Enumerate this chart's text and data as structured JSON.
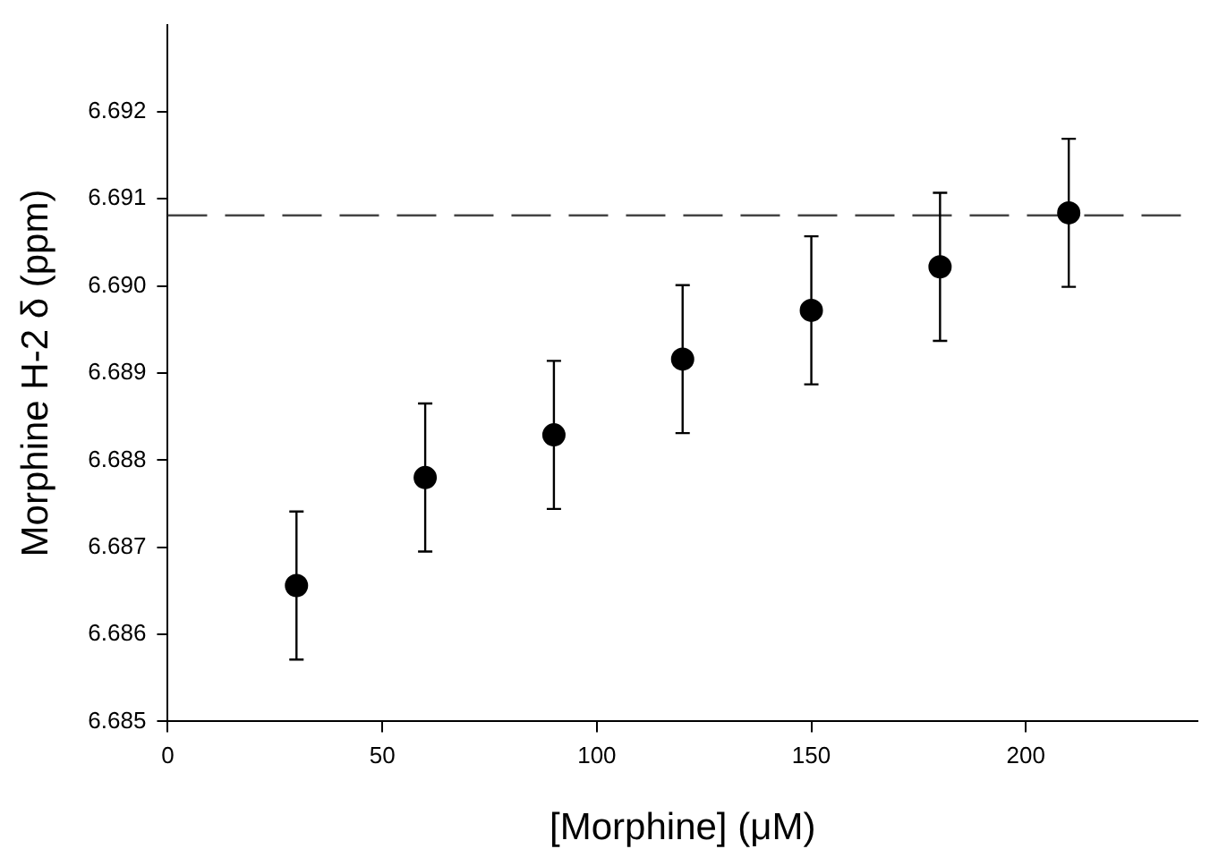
{
  "chart_data": {
    "type": "scatter",
    "xlabel": "[Morphine] (μM)",
    "ylabel": "Morphine H-2 δ (ppm)",
    "x": [
      30,
      60,
      90,
      120,
      150,
      180,
      210
    ],
    "values": [
      6.68656,
      6.6878,
      6.68829,
      6.68916,
      6.68972,
      6.69022,
      6.69084
    ],
    "errors": [
      0.00085,
      0.00085,
      0.00085,
      0.00085,
      0.00085,
      0.00085,
      0.00085
    ],
    "color": "#000000",
    "marker": "circle",
    "xlim": [
      0,
      240
    ],
    "xticks": [
      0,
      50,
      100,
      150,
      200
    ],
    "ylim": [
      6.685,
      6.693
    ],
    "yticks": [
      6.685,
      6.686,
      6.687,
      6.688,
      6.689,
      {
        "value": 6.69,
        "label": "6.690"
      },
      6.691,
      6.692
    ],
    "ref_lines": [
      {
        "axis": "y",
        "value": 6.69081,
        "color": "#444444",
        "line_style": "dashed"
      }
    ],
    "grid": false,
    "legend": false
  }
}
